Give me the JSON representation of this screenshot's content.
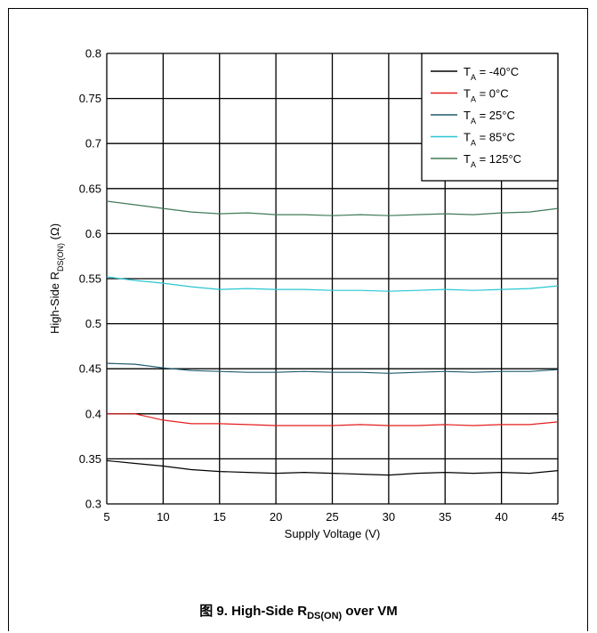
{
  "chart_data": {
    "type": "line",
    "xlabel": "Supply Voltage (V)",
    "ylabel": "High-Side R",
    "ylabel_sub": "DS(ON)",
    "ylabel_unit": " (Ω)",
    "xlim": [
      5,
      45
    ],
    "ylim": [
      0.3,
      0.8
    ],
    "x_ticks": [
      "5",
      "10",
      "15",
      "20",
      "25",
      "30",
      "35",
      "40",
      "45"
    ],
    "y_ticks": [
      "0.3",
      "0.35",
      "0.4",
      "0.45",
      "0.5",
      "0.55",
      "0.6",
      "0.65",
      "0.7",
      "0.75",
      "0.8"
    ],
    "grid": true,
    "legend_position": "top-right",
    "series": [
      {
        "name": "T",
        "name_sub": "A",
        "name_suffix": " = -40°C",
        "color": "#000000",
        "x": [
          5,
          7.5,
          10,
          12.5,
          15,
          17.5,
          20,
          22.5,
          25,
          27.5,
          30,
          32.5,
          35,
          37.5,
          40,
          42.5,
          45
        ],
        "y": [
          0.348,
          0.345,
          0.342,
          0.338,
          0.336,
          0.335,
          0.334,
          0.335,
          0.334,
          0.333,
          0.332,
          0.334,
          0.335,
          0.334,
          0.335,
          0.334,
          0.337
        ]
      },
      {
        "name": "T",
        "name_sub": "A",
        "name_suffix": " = 0°C",
        "color": "#e41e1e",
        "x": [
          5,
          7.5,
          10,
          12.5,
          15,
          17.5,
          20,
          22.5,
          25,
          27.5,
          30,
          32.5,
          35,
          37.5,
          40,
          42.5,
          45
        ],
        "y": [
          0.4,
          0.4,
          0.393,
          0.389,
          0.389,
          0.388,
          0.387,
          0.387,
          0.387,
          0.388,
          0.387,
          0.387,
          0.388,
          0.387,
          0.388,
          0.388,
          0.391
        ]
      },
      {
        "name": "T",
        "name_sub": "A",
        "name_suffix": " = 25°C",
        "color": "#1f5a6e",
        "x": [
          5,
          7.5,
          10,
          12.5,
          15,
          17.5,
          20,
          22.5,
          25,
          27.5,
          30,
          32.5,
          35,
          37.5,
          40,
          42.5,
          45
        ],
        "y": [
          0.456,
          0.455,
          0.451,
          0.448,
          0.447,
          0.446,
          0.446,
          0.447,
          0.446,
          0.446,
          0.445,
          0.446,
          0.447,
          0.446,
          0.447,
          0.447,
          0.449
        ]
      },
      {
        "name": "T",
        "name_sub": "A",
        "name_suffix": " = 85°C",
        "color": "#29c6d2",
        "x": [
          5,
          7.5,
          10,
          12.5,
          15,
          17.5,
          20,
          22.5,
          25,
          27.5,
          30,
          32.5,
          35,
          37.5,
          40,
          42.5,
          45
        ],
        "y": [
          0.552,
          0.548,
          0.545,
          0.541,
          0.538,
          0.539,
          0.538,
          0.538,
          0.537,
          0.537,
          0.536,
          0.537,
          0.538,
          0.537,
          0.538,
          0.539,
          0.542
        ]
      },
      {
        "name": "T",
        "name_sub": "A",
        "name_suffix": " = 125°C",
        "color": "#3f7a56",
        "x": [
          5,
          7.5,
          10,
          12.5,
          15,
          17.5,
          20,
          22.5,
          25,
          27.5,
          30,
          32.5,
          35,
          37.5,
          40,
          42.5,
          45
        ],
        "y": [
          0.636,
          0.632,
          0.628,
          0.624,
          0.622,
          0.623,
          0.621,
          0.621,
          0.62,
          0.621,
          0.62,
          0.621,
          0.622,
          0.621,
          0.623,
          0.624,
          0.628
        ]
      }
    ]
  },
  "caption": {
    "prefix": "图 9. High-Side R",
    "sub": "DS(ON)",
    "suffix": " over VM"
  }
}
